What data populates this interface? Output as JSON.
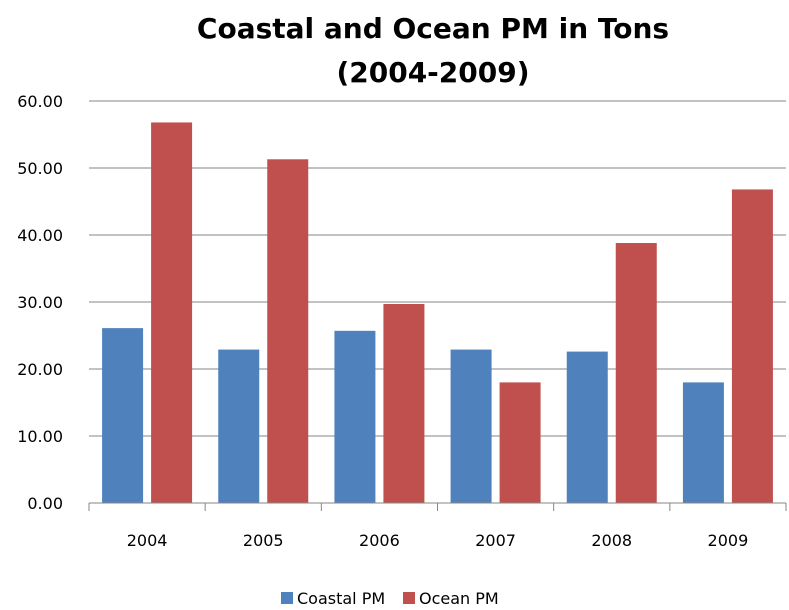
{
  "chart_data": {
    "type": "bar",
    "title": "Coastal and Ocean PM in Tons",
    "subtitle": "(2004-2009)",
    "xlabel": "",
    "ylabel": "",
    "categories": [
      "2004",
      "2005",
      "2006",
      "2007",
      "2008",
      "2009"
    ],
    "series": [
      {
        "name": "Coastal PM",
        "color": "#4f81bd",
        "values": [
          26.1,
          22.9,
          25.7,
          22.9,
          22.6,
          18.0
        ]
      },
      {
        "name": "Ocean PM",
        "color": "#c0504d",
        "values": [
          56.8,
          51.3,
          29.7,
          18.0,
          38.8,
          46.8
        ]
      }
    ],
    "ylim": [
      0,
      60
    ],
    "yticks": [
      "0.00",
      "10.00",
      "20.00",
      "30.00",
      "40.00",
      "50.00",
      "60.00"
    ],
    "grid": true,
    "legend_position": "bottom"
  }
}
